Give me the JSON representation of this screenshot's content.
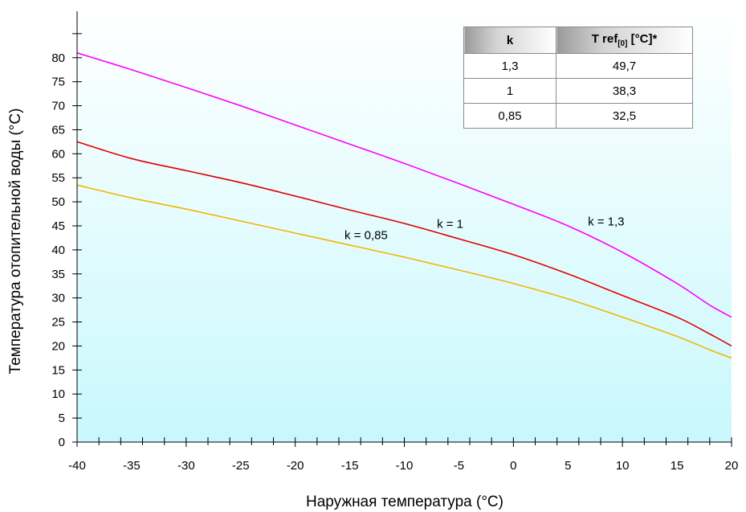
{
  "chart_data": {
    "type": "line",
    "title": "",
    "xlabel": "Наружная температура (°C)",
    "ylabel": "Температура отопительной воды (°C)",
    "xlim": [
      -40,
      20
    ],
    "ylim": [
      0,
      90
    ],
    "xticks": [
      -40,
      -35,
      -30,
      -25,
      -20,
      -15,
      -10,
      -5,
      0,
      5,
      10,
      15,
      20
    ],
    "yticks": [
      0,
      5,
      10,
      15,
      20,
      25,
      30,
      35,
      40,
      45,
      50,
      55,
      60,
      65,
      70,
      75,
      80
    ],
    "x_minor_step": 2,
    "grid": false,
    "series": [
      {
        "color": "#ff00ff",
        "x": [
          -40,
          -35,
          -30,
          -25,
          -20,
          -15,
          -10,
          -5,
          0,
          5,
          10,
          15,
          18,
          20
        ],
        "y": [
          81,
          77.5,
          73.8,
          70,
          66,
          62,
          58,
          53.8,
          49.5,
          45,
          39.5,
          33,
          28.5,
          26
        ]
      },
      {
        "color": "#e00000",
        "x": [
          -40,
          -35,
          -30,
          -25,
          -20,
          -15,
          -10,
          -5,
          0,
          5,
          10,
          15,
          18,
          20
        ],
        "y": [
          62.5,
          59,
          56.5,
          54,
          51.2,
          48.3,
          45.5,
          42.3,
          39,
          35,
          30.5,
          26,
          22.5,
          20
        ]
      },
      {
        "color": "#f5b400",
        "x": [
          -40,
          -35,
          -30,
          -25,
          -20,
          -15,
          -10,
          -5,
          0,
          5,
          10,
          15,
          18,
          20
        ],
        "y": [
          53.5,
          50.8,
          48.5,
          46,
          43.5,
          41,
          38.5,
          35.8,
          33,
          29.8,
          26,
          22,
          19.2,
          17.5
        ]
      }
    ],
    "annotations": [
      {
        "text": "k = 1,3",
        "x": 8.5,
        "y": 45.9
      },
      {
        "text": "k = 1",
        "x": -5.8,
        "y": 45.4
      },
      {
        "text": "k = 0,85",
        "x": -13.5,
        "y": 43.1
      }
    ],
    "background": {
      "top": "#ffffff",
      "bottom": "#c8f8fc"
    }
  },
  "legend_table": {
    "headers": {
      "k": "k",
      "t_main": "T ref",
      "t_sub": "[0]",
      "t_unit": " [°C]*"
    },
    "rows": [
      {
        "k": "1,3",
        "t": "49,7"
      },
      {
        "k": "1",
        "t": "38,3"
      },
      {
        "k": "0,85",
        "t": "32,5"
      }
    ]
  }
}
